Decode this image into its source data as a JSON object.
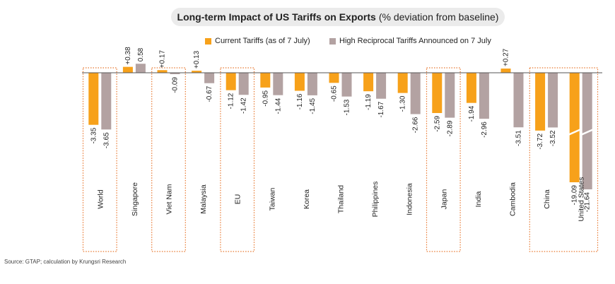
{
  "chart_data": {
    "type": "bar",
    "title_bold": "Long-term Impact of US Tariffs on Exports",
    "title_rest": "(% deviation from baseline)",
    "categories": [
      "World",
      "Singapore",
      "Viet Nam",
      "Malaysia",
      "EU",
      "Taiwan",
      "Korea",
      "Thailand",
      "Philippines",
      "Indonesia",
      "Japan",
      "India",
      "Cambodia",
      "China",
      "United States"
    ],
    "series": [
      {
        "name": "Current Tariffs (as of 7 July)",
        "color": "#f7a11a",
        "values": [
          -3.35,
          0.38,
          0.17,
          0.13,
          -1.12,
          -0.95,
          -1.16,
          -0.65,
          -1.19,
          -1.3,
          -2.59,
          -1.94,
          0.27,
          -3.72,
          -19.09
        ],
        "labels": [
          "-3.35",
          "+0.38",
          "+0.17",
          "+0.13",
          "-1.12",
          "-0.95",
          "-1.16",
          "-0.65",
          "-1.19",
          "-1.30",
          "-2.59",
          "-1.94",
          "+0.27",
          "-3.72",
          "-19.09"
        ]
      },
      {
        "name": "High Reciprocal Tariffs Announced on 7 July",
        "color": "#b3a2a2",
        "values": [
          -3.65,
          0.58,
          -0.09,
          -0.67,
          -1.42,
          -1.44,
          -1.45,
          -1.53,
          -1.67,
          -2.66,
          -2.89,
          -2.96,
          -3.51,
          -3.52,
          -21.64
        ],
        "labels": [
          "-3.65",
          "0.58",
          "-0.09",
          "-0.67",
          "-1.42",
          "-1.44",
          "-1.45",
          "-1.53",
          "-1.67",
          "-2.66",
          "-2.89",
          "-2.96",
          "-3.51",
          "-3.52",
          "-21.64"
        ]
      }
    ],
    "highlighted": [
      "World",
      "Viet Nam",
      "EU",
      "Japan",
      "China",
      "United States"
    ],
    "axis_break": "United States bars truncated (broken axis)",
    "source": "Source: GTAP; calculation by Krungsri Research"
  }
}
